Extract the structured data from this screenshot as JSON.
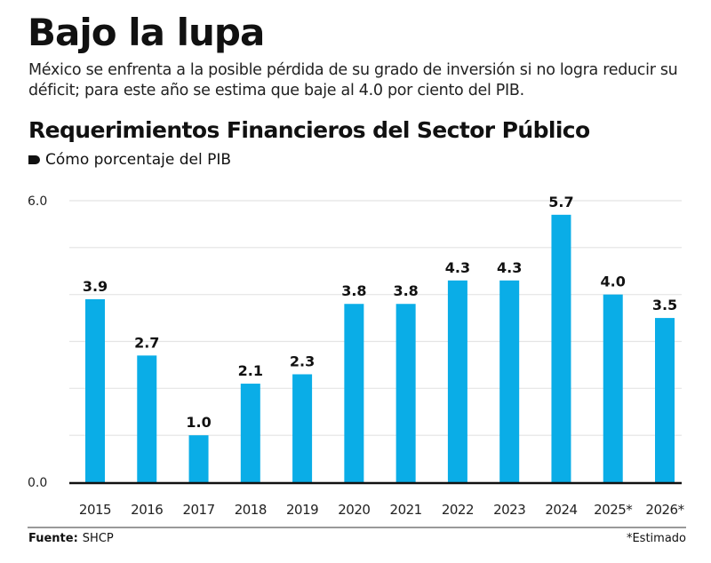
{
  "header": {
    "title": "Bajo la lupa",
    "subtitle": "México se enfrenta a la posible pérdida de su grado de inversión si no logra reducir su déficit; para este año se estima que baje al 4.0 por ciento del PIB."
  },
  "footer": {
    "source_label": "Fuente:",
    "source_value": "SHCP",
    "note": "*Estimado"
  },
  "colors": {
    "bar": "#0AADE7",
    "grid": "#E4E4E4",
    "axis": "#111111"
  },
  "chart_data": {
    "type": "bar",
    "title": "Requerimientos Financieros del Sector Público",
    "subtitle": "Cómo porcentaje del PIB",
    "categories": [
      "2015",
      "2016",
      "2017",
      "2018",
      "2019",
      "2020",
      "2021",
      "2022",
      "2023",
      "2024",
      "2025*",
      "2026*"
    ],
    "values": [
      3.9,
      2.7,
      1.0,
      2.1,
      2.3,
      3.8,
      3.8,
      4.3,
      4.3,
      5.7,
      4.0,
      3.5
    ],
    "value_labels": [
      "3.9",
      "2.7",
      "1.0",
      "2.1",
      "2.3",
      "3.8",
      "3.8",
      "4.3",
      "4.3",
      "5.7",
      "4.0",
      "3.5"
    ],
    "ylim": [
      0,
      6
    ],
    "y_ticks": [
      0,
      1,
      2,
      3,
      4,
      5,
      6
    ],
    "y_tick_labels": [
      {
        "value": 0,
        "label": "0.0"
      },
      {
        "value": 6,
        "label": "6.0"
      }
    ],
    "grid": true,
    "xlabel": "",
    "ylabel": ""
  }
}
